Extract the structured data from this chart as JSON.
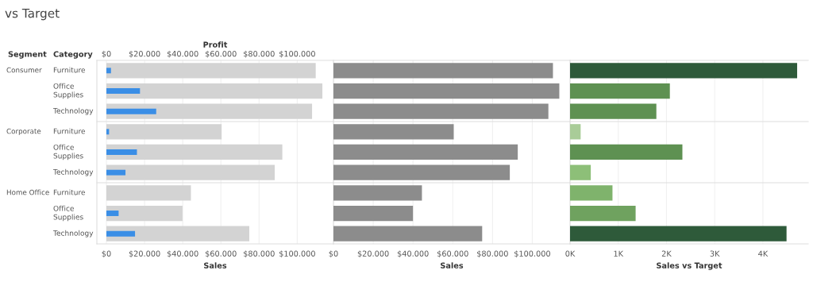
{
  "chart_data": [
    {
      "type": "bar",
      "orientation": "horizontal",
      "title": "vs Target",
      "ylabel": "Category",
      "xlabel": "Sales",
      "x2label": "Profit",
      "annotations": [
        "Segment",
        "Consumer",
        "Corporate",
        "Home Office"
      ],
      "categories": [
        "Furniture",
        "Office Supplies",
        "Technology",
        "Furniture",
        "Office Supplies",
        "Technology",
        "Furniture",
        "Office Supplies",
        "Technology"
      ],
      "series": [
        {
          "color": "#d3d3d3",
          "values": [
            109700,
            113200,
            107800,
            60400,
            92200,
            88200,
            44300,
            39900,
            74900
          ]
        },
        {
          "color": "#3a8ee6",
          "axis": "x2",
          "values": [
            2400,
            17600,
            26100,
            1400,
            16000,
            10000,
            null,
            6400,
            15000
          ]
        }
      ],
      "xlim": [
        -5000,
        119000
      ],
      "x2lim": [
        -5000,
        119000
      ],
      "xticks": [
        {
          "value": 0,
          "label": "$0"
        },
        {
          "value": 20000,
          "label": "$20.000"
        },
        {
          "value": 40000,
          "label": "$40.000"
        },
        {
          "value": 60000,
          "label": "$60.000"
        },
        {
          "value": 80000,
          "label": "$80.000"
        },
        {
          "value": 100000,
          "label": "$100.000"
        }
      ],
      "x2ticks": [
        {
          "value": 0,
          "label": "$0"
        },
        {
          "value": 20000,
          "label": "$20.000"
        },
        {
          "value": 40000,
          "label": "$40.000"
        },
        {
          "value": 60000,
          "label": "$60.000"
        },
        {
          "value": 80000,
          "label": "$80.000"
        },
        {
          "value": 100000,
          "label": "$100.000"
        }
      ],
      "grid": "x"
    },
    {
      "type": "bar",
      "orientation": "horizontal",
      "xlabel": "Sales",
      "categories": [
        null,
        null,
        null,
        null,
        null,
        null,
        null,
        null,
        null
      ],
      "series": [
        {
          "color": "#8c8c8c",
          "values": [
            110400,
            113600,
            108100,
            60500,
            92700,
            88700,
            44500,
            40000,
            74800
          ]
        }
      ],
      "xlim": [
        0,
        119000
      ],
      "xticks": [
        {
          "value": 0,
          "label": "$0"
        },
        {
          "value": 20000,
          "label": "$20.000"
        },
        {
          "value": 40000,
          "label": "$40.000"
        },
        {
          "value": 60000,
          "label": "$60.000"
        },
        {
          "value": 80000,
          "label": "$80.000"
        },
        {
          "value": 100000,
          "label": "$100.000"
        }
      ],
      "grid": "x",
      "tick_labels": "x"
    },
    {
      "type": "bar",
      "orientation": "horizontal",
      "xlabel": "Sales vs Target",
      "categories": [
        null,
        null,
        null,
        null,
        null,
        null,
        null,
        null,
        null
      ],
      "values": [
        4710,
        2070,
        1790,
        220,
        2330,
        430,
        880,
        1360,
        4490
      ],
      "colors": [
        "#2e5a3a",
        "#5e9152",
        "#5e9152",
        "#a9cc98",
        "#5e9152",
        "#8dbf78",
        "#7fb36c",
        "#6fa25f",
        "#2e5a3a"
      ],
      "xlim": [
        0,
        4940
      ],
      "xticks": [
        {
          "value": 0,
          "label": "0K"
        },
        {
          "value": 1000,
          "label": "1K"
        },
        {
          "value": 2000,
          "label": "2K"
        },
        {
          "value": 3000,
          "label": "3K"
        },
        {
          "value": 4000,
          "label": "4K"
        }
      ],
      "grid": "x",
      "tick_labels": "x"
    }
  ]
}
